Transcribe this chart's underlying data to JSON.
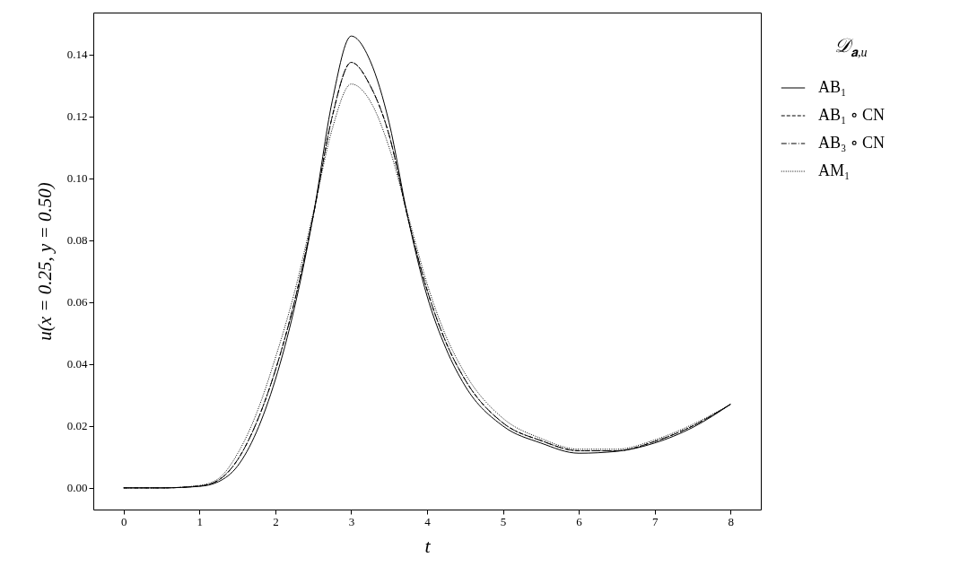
{
  "chart_data": {
    "type": "line",
    "xlabel": "t",
    "ylabel": "u(x = 0.25, y = 0.50)",
    "legend_title": "𝒟$_{𝐚,u}$",
    "x": [
      0,
      0.5,
      1,
      1.25,
      1.5,
      1.75,
      2,
      2.25,
      2.5,
      2.75,
      3,
      3.25,
      3.5,
      3.75,
      4,
      4.25,
      4.5,
      5,
      5.5,
      6,
      6.5,
      7,
      7.5,
      8
    ],
    "series": [
      {
        "name": "AB₁",
        "color": "#000000",
        "line_style": "solid",
        "values": [
          0,
          0,
          0.0005,
          0.002,
          0.007,
          0.018,
          0.035,
          0.058,
          0.088,
          0.125,
          0.146,
          0.138,
          0.118,
          0.087,
          0.062,
          0.045,
          0.033,
          0.02,
          0.0145,
          0.0112,
          0.0118,
          0.0145,
          0.0195,
          0.027
        ]
      },
      {
        "name": "AB₁ ∘ CN",
        "color": "#000000",
        "line_style": "dashed",
        "values": [
          0,
          0,
          0.0006,
          0.0025,
          0.009,
          0.021,
          0.038,
          0.06,
          0.088,
          0.12,
          0.1375,
          0.13,
          0.114,
          0.087,
          0.064,
          0.047,
          0.035,
          0.021,
          0.0153,
          0.012,
          0.012,
          0.015,
          0.02,
          0.027
        ]
      },
      {
        "name": "AB₃ ∘ CN",
        "color": "#000000",
        "line_style": "dashdot",
        "values": [
          0,
          0,
          0.0006,
          0.0025,
          0.009,
          0.021,
          0.038,
          0.06,
          0.088,
          0.12,
          0.1375,
          0.13,
          0.114,
          0.087,
          0.064,
          0.047,
          0.035,
          0.021,
          0.0153,
          0.012,
          0.012,
          0.015,
          0.02,
          0.027
        ]
      },
      {
        "name": "AM₁",
        "color": "#000000",
        "line_style": "dotted",
        "values": [
          0,
          0,
          0.0008,
          0.003,
          0.011,
          0.024,
          0.042,
          0.063,
          0.089,
          0.116,
          0.1305,
          0.125,
          0.11,
          0.088,
          0.066,
          0.049,
          0.037,
          0.0225,
          0.016,
          0.0125,
          0.0125,
          0.0155,
          0.0205,
          0.027
        ]
      }
    ],
    "xlim": [
      -0.4,
      8.4
    ],
    "xticks": [
      0,
      1,
      2,
      3,
      4,
      5,
      6,
      7,
      8
    ],
    "ylim": [
      -0.007,
      0.1536
    ],
    "yticks": [
      {
        "value": 0,
        "label": "0.00"
      },
      {
        "value": 0.02,
        "label": "0.02"
      },
      {
        "value": 0.04,
        "label": "0.04"
      },
      {
        "value": 0.06,
        "label": "0.06"
      },
      {
        "value": 0.08,
        "label": "0.08"
      },
      {
        "value": 0.1,
        "label": "0.10"
      },
      {
        "value": 0.12,
        "label": "0.12"
      },
      {
        "value": 0.14,
        "label": "0.14"
      }
    ],
    "legend": "right",
    "grid": false
  }
}
